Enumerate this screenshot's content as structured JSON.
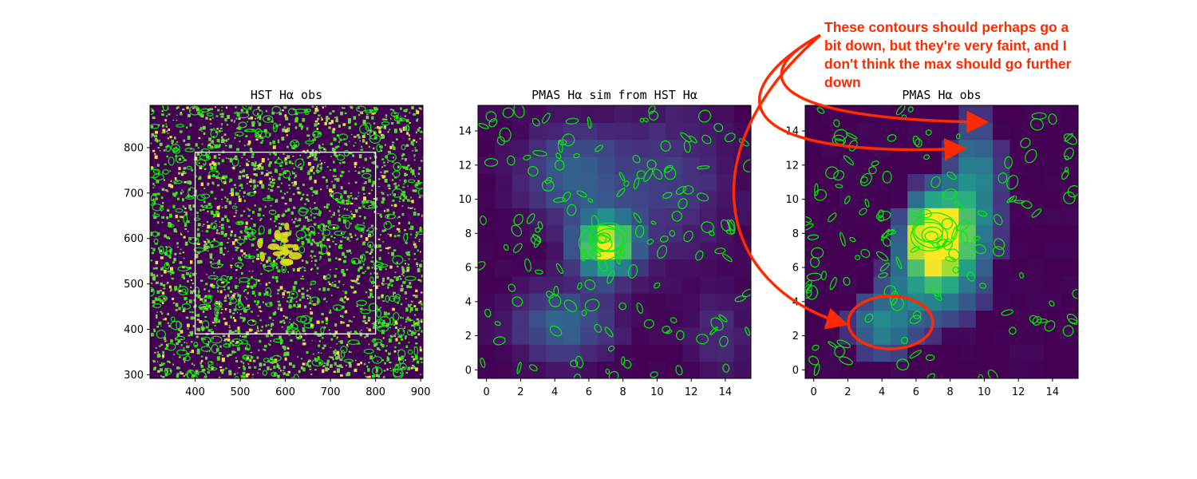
{
  "annotation": {
    "lines": [
      "These contours should perhaps go a",
      "bit down, but they're very faint, and I",
      "don't think the max should go further",
      "down"
    ],
    "color": "#ff2a00"
  },
  "chart_data": [
    {
      "type": "heatmap",
      "title": "HST Hα obs",
      "xlim": [
        300,
        905
      ],
      "ylim": [
        292,
        893
      ],
      "xticks": [
        400,
        500,
        600,
        700,
        800,
        900
      ],
      "yticks": [
        300,
        400,
        500,
        600,
        700,
        800
      ],
      "colormap": "viridis",
      "contour_color": "#00ee00",
      "overlay_box": {
        "x": [
          400,
          800
        ],
        "y": [
          390,
          790
        ],
        "color": "#ffffff"
      },
      "emission_peak": {
        "x": 595,
        "y": 580
      }
    },
    {
      "type": "heatmap",
      "title": "PMAS Hα sim from HST Hα",
      "xlim": [
        -0.5,
        15.5
      ],
      "ylim": [
        -0.5,
        15.5
      ],
      "xticks": [
        0,
        2,
        4,
        6,
        8,
        10,
        12,
        14
      ],
      "yticks": [
        0,
        2,
        4,
        6,
        8,
        10,
        12,
        14
      ],
      "colormap": "viridis",
      "contour_color": "#00ee00",
      "peak_pixel": {
        "x": 7,
        "y": 7.5
      }
    },
    {
      "type": "heatmap",
      "title": "PMAS Hα obs",
      "xlim": [
        -0.5,
        15.5
      ],
      "ylim": [
        -0.5,
        15.5
      ],
      "xticks": [
        0,
        2,
        4,
        6,
        8,
        10,
        12,
        14
      ],
      "yticks": [
        0,
        2,
        4,
        6,
        8,
        10,
        12,
        14
      ],
      "colormap": "viridis",
      "contour_color": "#00ee00",
      "peak_pixel": {
        "x": 7,
        "y": 8
      }
    }
  ]
}
